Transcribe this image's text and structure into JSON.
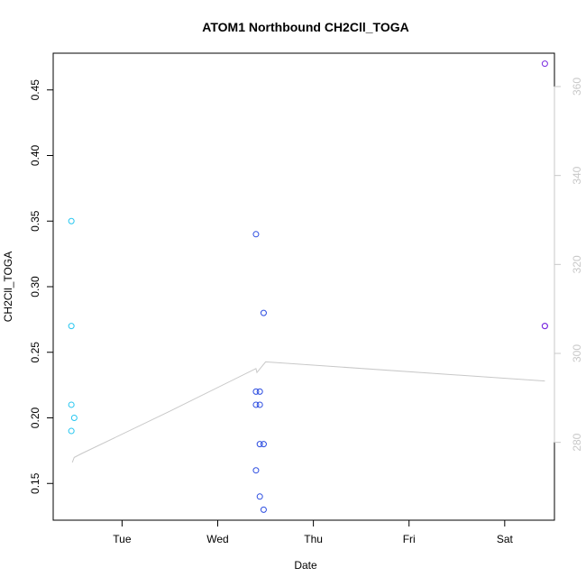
{
  "chart_data": {
    "type": "scatter",
    "title": "ATOM1 Northbound CH2Cll_TOGA",
    "xlabel": "Date",
    "ylabel": "CH2Cll_TOGA",
    "x_ticks": [
      "Tue",
      "Wed",
      "Thu",
      "Fri",
      "Sat"
    ],
    "x_tick_values": [
      1,
      2,
      3,
      4,
      5
    ],
    "xlim": [
      0.28,
      5.52
    ],
    "y_ticks": [
      0.15,
      0.2,
      0.25,
      0.3,
      0.35,
      0.4,
      0.45
    ],
    "ylim": [
      0.122,
      0.478
    ],
    "y2_ticks": [
      280,
      300,
      320,
      340,
      360
    ],
    "y2lim": [
      262.5,
      367.5
    ],
    "grid": false,
    "series": [
      {
        "color": "#26c6f0",
        "points": [
          [
            0.47,
            0.35
          ],
          [
            0.47,
            0.27
          ],
          [
            0.47,
            0.21
          ],
          [
            0.47,
            0.19
          ],
          [
            0.5,
            0.2
          ]
        ]
      },
      {
        "color": "#2b4ce0",
        "points": [
          [
            2.4,
            0.34
          ],
          [
            2.48,
            0.28
          ],
          [
            2.4,
            0.22
          ],
          [
            2.44,
            0.22
          ],
          [
            2.4,
            0.21
          ],
          [
            2.44,
            0.21
          ],
          [
            2.44,
            0.18
          ],
          [
            2.48,
            0.18
          ],
          [
            2.4,
            0.16
          ],
          [
            2.44,
            0.14
          ],
          [
            2.48,
            0.13
          ]
        ]
      },
      {
        "color": "#7a2be0",
        "points": [
          [
            5.42,
            0.47
          ],
          [
            5.42,
            0.27
          ],
          [
            5.42,
            0.27
          ]
        ]
      }
    ],
    "line_series": {
      "color": "#c8c8c8",
      "axis": "right",
      "points": [
        [
          0.48,
          275.5
        ],
        [
          0.5,
          276.6
        ],
        [
          0.58,
          277.5
        ],
        [
          1.5,
          287
        ],
        [
          2.4,
          296.6
        ],
        [
          2.41,
          295.7
        ],
        [
          2.5,
          298.1
        ],
        [
          5.42,
          293.8
        ]
      ]
    }
  }
}
